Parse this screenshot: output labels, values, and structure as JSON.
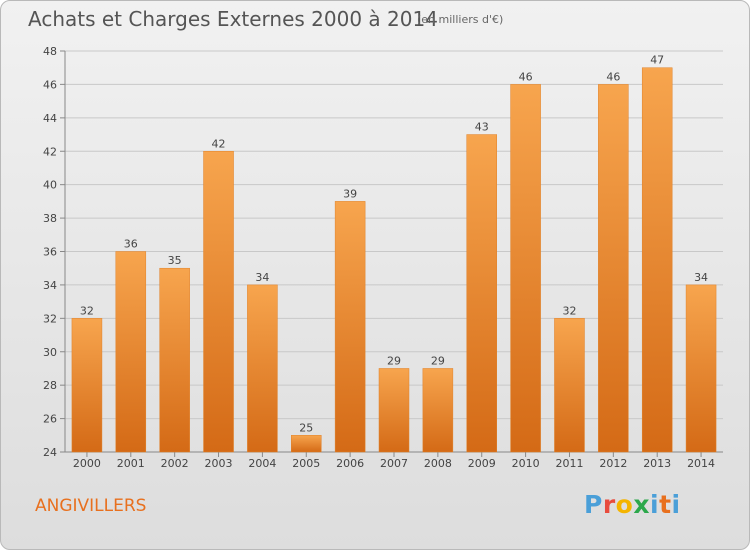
{
  "header": {
    "title": "Achats et Charges Externes 2000 à 2014",
    "subtitle": "(en milliers d'€)"
  },
  "footer": {
    "commune": "ANGIVILLERS",
    "brand": {
      "letters": [
        "P",
        "r",
        "o",
        "x",
        "i",
        "t",
        "i"
      ],
      "colors": [
        "#4a9fd8",
        "#e84c3d",
        "#f4b400",
        "#2ca84b",
        "#4a9fd8",
        "#e8701e",
        "#4a9fd8"
      ]
    }
  },
  "chart_data": {
    "type": "bar",
    "categories": [
      "2000",
      "2001",
      "2002",
      "2003",
      "2004",
      "2005",
      "2006",
      "2007",
      "2008",
      "2009",
      "2010",
      "2011",
      "2012",
      "2013",
      "2014"
    ],
    "values": [
      32,
      36,
      35,
      42,
      34,
      25,
      39,
      29,
      29,
      43,
      46,
      32,
      46,
      47,
      34
    ],
    "ylim": [
      24,
      48
    ],
    "yticks": [
      24,
      26,
      28,
      30,
      32,
      34,
      36,
      38,
      40,
      42,
      44,
      46,
      48
    ],
    "grid": true,
    "bar_color": "#f0922f",
    "bar_color_dark": "#d86b15"
  }
}
